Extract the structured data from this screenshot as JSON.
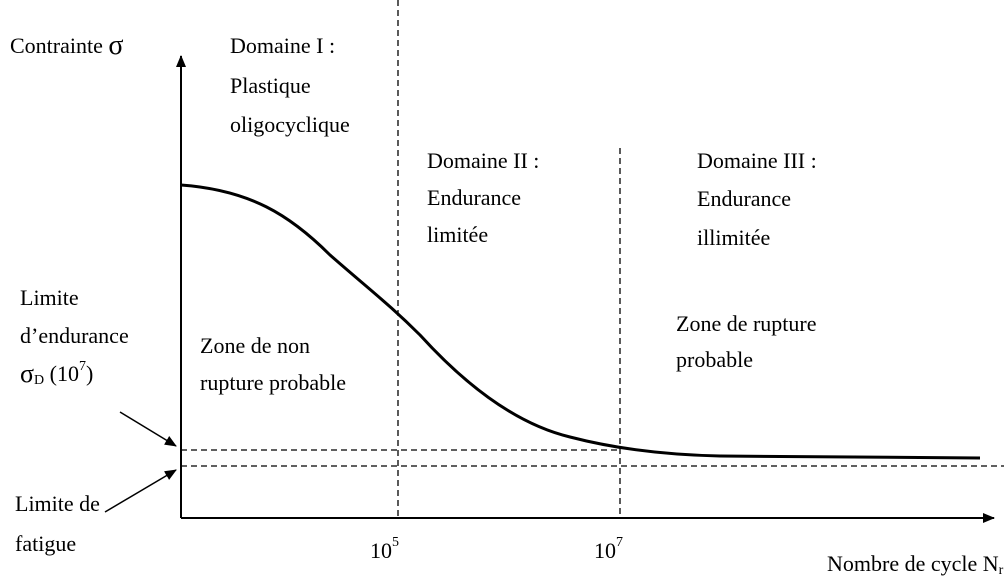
{
  "y_axis_label": {
    "text": "Contrainte ",
    "symbol": "σ"
  },
  "domains": [
    {
      "lines": [
        "Domaine I :",
        "Plastique",
        "oligocyclique"
      ]
    },
    {
      "lines": [
        "Domaine II :",
        "Endurance",
        "limitée"
      ]
    },
    {
      "lines": [
        "Domaine III :",
        "Endurance",
        "illimitée"
      ]
    }
  ],
  "endurance_limit": {
    "lines": [
      "Limite",
      "d’endurance"
    ],
    "symbol": "σ",
    "sub": "D",
    "open": " (10",
    "exp": "7",
    "close": ")"
  },
  "zones": [
    {
      "lines": [
        "Zone de non",
        "rupture probable"
      ]
    },
    {
      "lines": [
        "Zone de rupture",
        "probable"
      ]
    }
  ],
  "fatigue_limit": {
    "lines": [
      "Limite de",
      "fatigue"
    ]
  },
  "x_ticks": [
    {
      "base": "10",
      "exp": "5"
    },
    {
      "base": "10",
      "exp": "7"
    }
  ],
  "x_axis_label": {
    "text": "Nombre de cycle N",
    "sub": "r"
  }
}
